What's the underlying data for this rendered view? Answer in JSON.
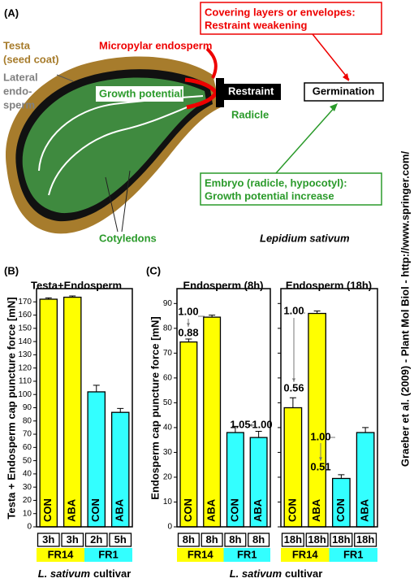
{
  "panel_a": {
    "label": "(A)",
    "testa": [
      "Testa",
      "(seed coat)"
    ],
    "lateral": [
      "Lateral",
      "endo-",
      "sperm"
    ],
    "micropylar": "Micropylar endosperm",
    "growth": "Growth potential",
    "restraint": "Restraint",
    "radicle": "Radicle",
    "covering": [
      "Covering layers or envelopes:",
      "Restraint weakening"
    ],
    "germination": "Germination",
    "embryo": [
      "Embryo (radicle, hypocotyl):",
      "Growth potential increase"
    ],
    "cotyledons": "Cotyledons",
    "species": "Lepidium sativum"
  },
  "panel_b": {
    "label": "(B)"
  },
  "panel_c": {
    "label": "(C)",
    "ylabel": "Endosperm cap puncture force [mN]",
    "xlabel_italic": "L. sativum",
    "xlabel": "cultivar"
  },
  "chart_data": [
    {
      "type": "bar",
      "title": "Testa+Endosperm",
      "ylabel": "Testa + Endosperm cap puncture force [mN]",
      "xlabel_italic": "L. sativum",
      "xlabel": "cultivar",
      "categories": [
        "CON",
        "ABA",
        "CON",
        "ABA"
      ],
      "times": [
        "3h",
        "3h",
        "2h",
        "5h"
      ],
      "groups": [
        "FR14",
        "FR1"
      ],
      "group_colors": [
        "#ffff00",
        "#33ffff"
      ],
      "colors": [
        "#ffff00",
        "#ffff00",
        "#33ffff",
        "#33ffff"
      ],
      "values": [
        172,
        173.5,
        102,
        86.5
      ],
      "errors": [
        1,
        1,
        5,
        3
      ],
      "ylim": [
        0,
        180
      ],
      "yticks": [
        0,
        10,
        20,
        30,
        40,
        50,
        60,
        70,
        80,
        90,
        100,
        110,
        120,
        130,
        140,
        150,
        160,
        170
      ],
      "tick_labels": true
    },
    {
      "type": "bar",
      "title": "Endosperm (8h)",
      "categories": [
        "CON",
        "ABA",
        "CON",
        "ABA"
      ],
      "times": [
        "8h",
        "8h",
        "8h",
        "8h"
      ],
      "groups": [
        "FR14",
        "FR1"
      ],
      "group_colors": [
        "#ffff00",
        "#33ffff"
      ],
      "colors": [
        "#ffff00",
        "#ffff00",
        "#33ffff",
        "#33ffff"
      ],
      "values": [
        74.5,
        84.5,
        38,
        36
      ],
      "errors": [
        1.2,
        0.8,
        2.5,
        2.5
      ],
      "annotations": [
        "1.00",
        "0.88",
        "1.05",
        "1.00"
      ],
      "ylim": [
        0,
        96
      ],
      "yticks": [
        0,
        10,
        20,
        30,
        40,
        50,
        60,
        70,
        80,
        90
      ],
      "tick_labels": true
    },
    {
      "type": "bar",
      "title": "Endosperm (18h)",
      "categories": [
        "CON",
        "ABA",
        "CON",
        "ABA"
      ],
      "times": [
        "18h",
        "18h",
        "18h",
        "18h"
      ],
      "groups": [
        "FR14",
        "FR1"
      ],
      "group_colors": [
        "#ffff00",
        "#33ffff"
      ],
      "colors": [
        "#ffff00",
        "#ffff00",
        "#33ffff",
        "#33ffff"
      ],
      "values": [
        48,
        86,
        19.5,
        38
      ],
      "errors": [
        4,
        1,
        1.5,
        2
      ],
      "annotations": [
        "1.00",
        "0.56",
        "1.00",
        "0.51"
      ],
      "ylim": [
        0,
        96
      ],
      "yticks": [
        0,
        10,
        20,
        30,
        40,
        50,
        60,
        70,
        80,
        90
      ],
      "tick_labels": false
    }
  ],
  "credit": "Graeber et al. (2009) - Plant Mol Biol - http://www.springer.com/"
}
